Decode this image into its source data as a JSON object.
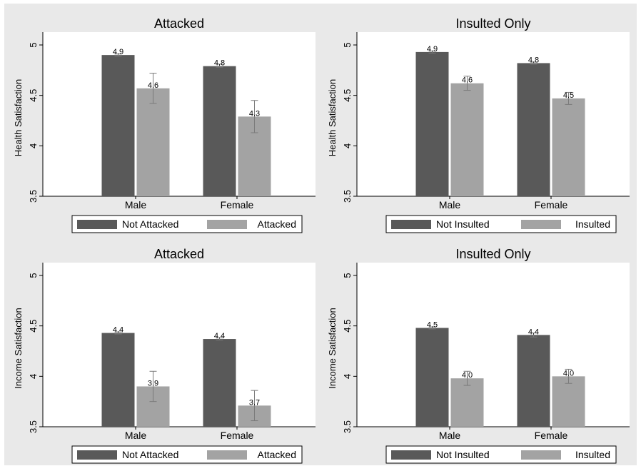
{
  "colors": {
    "outer_background": "#e9e9e9",
    "plot_background": "#ffffff",
    "dark_bar": "#595959",
    "light_bar": "#a3a3a3",
    "error_bar": "#7a7a7a"
  },
  "chart_data": [
    {
      "type": "bar",
      "title": "Attacked",
      "ylabel": "Health Satisfaction",
      "xlabel": "",
      "ylim": [
        3.5,
        5.0
      ],
      "yticks": [
        "3.5",
        "4",
        "4.5",
        "5"
      ],
      "categories": [
        "Male",
        "Female"
      ],
      "series": [
        {
          "name": "Not Attacked",
          "values": [
            4.9,
            4.79
          ],
          "value_labels": [
            "4.9",
            "4.8"
          ],
          "ci_low": [
            4.89,
            4.78
          ],
          "ci_high": [
            4.91,
            4.81
          ]
        },
        {
          "name": "Attacked",
          "values": [
            4.57,
            4.29
          ],
          "value_labels": [
            "4.6",
            "4.3"
          ],
          "ci_low": [
            4.42,
            4.13
          ],
          "ci_high": [
            4.72,
            4.45
          ]
        }
      ],
      "legend": {
        "position": "bottom"
      }
    },
    {
      "type": "bar",
      "title": "Insulted Only",
      "ylabel": "Health Satisfaction",
      "xlabel": "",
      "ylim": [
        3.5,
        5.0
      ],
      "yticks": [
        "3.5",
        "4",
        "4.5",
        "5"
      ],
      "categories": [
        "Male",
        "Female"
      ],
      "series": [
        {
          "name": "Not Insulted",
          "values": [
            4.93,
            4.82
          ],
          "value_labels": [
            "4.9",
            "4.8"
          ],
          "ci_low": [
            4.92,
            4.81
          ],
          "ci_high": [
            4.94,
            4.83
          ]
        },
        {
          "name": "Insulted",
          "values": [
            4.62,
            4.47
          ],
          "value_labels": [
            "4.6",
            "4.5"
          ],
          "ci_low": [
            4.55,
            4.41
          ],
          "ci_high": [
            4.69,
            4.53
          ]
        }
      ],
      "legend": {
        "position": "bottom"
      }
    },
    {
      "type": "bar",
      "title": "Attacked",
      "ylabel": "Income Satisfaction",
      "xlabel": "",
      "ylim": [
        3.5,
        5.0
      ],
      "yticks": [
        "3.5",
        "4",
        "4.5",
        "5"
      ],
      "categories": [
        "Male",
        "Female"
      ],
      "series": [
        {
          "name": "Not Attacked",
          "values": [
            4.43,
            4.37
          ],
          "value_labels": [
            "4.4",
            "4.4"
          ],
          "ci_low": [
            4.42,
            4.36
          ],
          "ci_high": [
            4.44,
            4.38
          ]
        },
        {
          "name": "Attacked",
          "values": [
            3.9,
            3.71
          ],
          "value_labels": [
            "3.9",
            "3.7"
          ],
          "ci_low": [
            3.75,
            3.56
          ],
          "ci_high": [
            4.05,
            3.86
          ]
        }
      ],
      "legend": {
        "position": "bottom"
      }
    },
    {
      "type": "bar",
      "title": "Insulted Only",
      "ylabel": "Income Satisfaction",
      "xlabel": "",
      "ylim": [
        3.5,
        5.0
      ],
      "yticks": [
        "3.5",
        "4",
        "4.5",
        "5"
      ],
      "categories": [
        "Male",
        "Female"
      ],
      "series": [
        {
          "name": "Not Insulted",
          "values": [
            4.48,
            4.41
          ],
          "value_labels": [
            "4.5",
            "4.4"
          ],
          "ci_low": [
            4.47,
            4.39
          ],
          "ci_high": [
            4.49,
            4.43
          ]
        },
        {
          "name": "Insulted",
          "values": [
            3.98,
            4.0
          ],
          "value_labels": [
            "4.0",
            "4.0"
          ],
          "ci_low": [
            3.91,
            3.93
          ],
          "ci_high": [
            4.05,
            4.07
          ]
        }
      ],
      "legend": {
        "position": "bottom"
      }
    }
  ]
}
